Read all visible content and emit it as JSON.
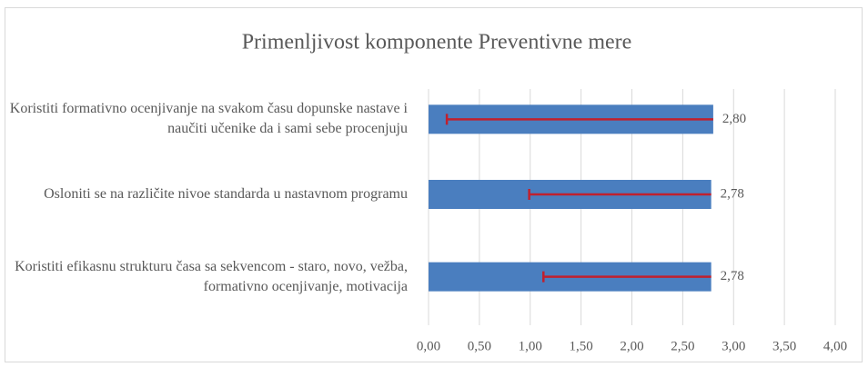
{
  "chart_data": {
    "type": "bar",
    "orientation": "horizontal",
    "title": "Primenljivost komponente Preventivne mere",
    "categories": [
      "Koristiti formativno ocenjivanje na svakom času dopunske nastave i naučiti učenike da i sami sebe procenjuju",
      "Osloniti se na različite nivoe standarda u nastavnom programu",
      "Koristiti efikasnu strukturu časa sa sekvencom - staro, novo, vežba, formativno ocenjivanje, motivacija"
    ],
    "values": [
      2.8,
      2.78,
      2.78
    ],
    "value_labels": [
      "2,80",
      "2,78",
      "2,78"
    ],
    "errors_minus": [
      2.62,
      1.79,
      1.65
    ],
    "color": "#4a7ebf",
    "error_color": "#c0202e",
    "xlim": [
      0,
      4
    ],
    "xticks": [
      {
        "value": 0,
        "label": "0,00"
      },
      {
        "value": 0.5,
        "label": "0,50"
      },
      {
        "value": 1,
        "label": "1,00"
      },
      {
        "value": 1.5,
        "label": "1,50"
      },
      {
        "value": 2,
        "label": "2,00"
      },
      {
        "value": 2.5,
        "label": "2,50"
      },
      {
        "value": 3,
        "label": "3,00"
      },
      {
        "value": 3.5,
        "label": "3,50"
      },
      {
        "value": 4,
        "label": "4,00"
      }
    ],
    "grid": true
  }
}
